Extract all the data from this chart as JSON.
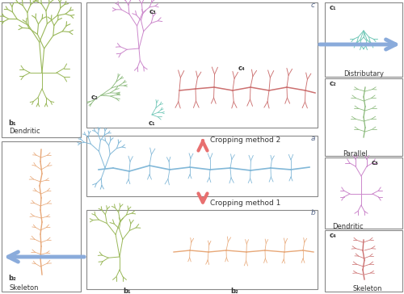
{
  "bg_color": "#ffffff",
  "panel_a_label": "a",
  "panel_b_label": "b",
  "panel_c_label": "c",
  "arrow1_label": "Cropping method 1",
  "arrow2_label": "Cropping method 2",
  "left_b1_label": "b₁",
  "left_b1_sub": "Dendritic",
  "left_b2_label": "b₂",
  "left_b2_sub": "Skeleton",
  "right_c1_label": "c₁",
  "right_c1_sub": "Distributary",
  "right_c2_label": "c₂",
  "right_c2_sub": "Parallel",
  "right_c3_label": "c₃",
  "right_c3_sub": "Dendritic",
  "right_c4_label": "c₄",
  "right_c4_sub": "Skeleton",
  "panel_c_c1": "c₁",
  "panel_c_c2": "c₂",
  "panel_c_c3": "c₃",
  "panel_c_c4": "c₄",
  "panel_b_b1": "b₁",
  "panel_b_b2": "b₂",
  "arrow_red": "#e87070",
  "arrow_blue": "#8aabdb",
  "green_color": "#9ab85a",
  "orange_color": "#e8a878",
  "blue_color": "#82b8d8",
  "pink_color": "#cc88cc",
  "red_color": "#cc7070",
  "teal_color": "#72c8b8",
  "green2_color": "#88b878",
  "panel_edge": "#888888",
  "label_color": "#333333",
  "note_color": "#556688"
}
